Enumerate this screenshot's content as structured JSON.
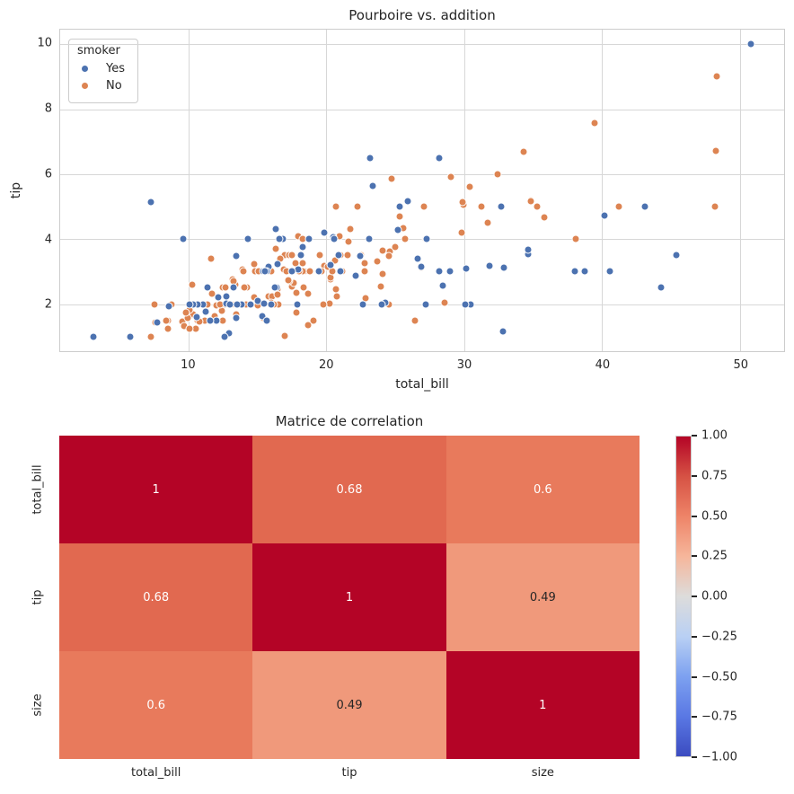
{
  "chart_data": [
    {
      "type": "scatter",
      "title": "Pourboire vs. addition",
      "xlabel": "total_bill",
      "ylabel": "tip",
      "xlim": [
        0.68,
        53.2
      ],
      "ylim": [
        0.55,
        10.45
      ],
      "x_ticks": [
        10,
        20,
        30,
        40,
        50
      ],
      "y_ticks": [
        2,
        4,
        6,
        8,
        10
      ],
      "grid": true,
      "legend": {
        "title": "smoker",
        "position": "upper left",
        "items": [
          {
            "label": "Yes",
            "color": "#4c72b0"
          },
          {
            "label": "No",
            "color": "#dd8452"
          }
        ]
      },
      "series": [
        {
          "name": "Yes",
          "color": "#4c72b0",
          "points": [
            [
              38.01,
              3.0
            ],
            [
              11.24,
              1.76
            ],
            [
              20.29,
              3.21
            ],
            [
              13.81,
              2.0
            ],
            [
              11.02,
              1.98
            ],
            [
              18.29,
              3.76
            ],
            [
              3.07,
              1.0
            ],
            [
              15.01,
              2.09
            ],
            [
              26.86,
              3.14
            ],
            [
              25.28,
              5.0
            ],
            [
              17.92,
              3.08
            ],
            [
              19.44,
              3.0
            ],
            [
              32.68,
              5.0
            ],
            [
              28.97,
              3.0
            ],
            [
              5.75,
              1.0
            ],
            [
              16.32,
              4.3
            ],
            [
              40.17,
              4.73
            ],
            [
              27.28,
              4.0
            ],
            [
              12.03,
              1.5
            ],
            [
              21.01,
              3.0
            ],
            [
              11.35,
              2.5
            ],
            [
              15.38,
              3.0
            ],
            [
              44.3,
              2.5
            ],
            [
              22.42,
              3.48
            ],
            [
              15.36,
              1.64
            ],
            [
              20.49,
              4.06
            ],
            [
              25.21,
              4.29
            ],
            [
              14.31,
              4.0
            ],
            [
              16.0,
              2.0
            ],
            [
              17.51,
              3.0
            ],
            [
              10.59,
              1.61
            ],
            [
              10.63,
              2.0
            ],
            [
              50.81,
              10.0
            ],
            [
              15.81,
              3.16
            ],
            [
              7.25,
              5.15
            ],
            [
              31.85,
              3.18
            ],
            [
              16.82,
              4.0
            ],
            [
              32.9,
              3.11
            ],
            [
              17.89,
              2.0
            ],
            [
              14.48,
              2.0
            ],
            [
              9.6,
              4.0
            ],
            [
              34.63,
              3.55
            ],
            [
              34.65,
              3.68
            ],
            [
              23.33,
              5.65
            ],
            [
              45.35,
              3.5
            ],
            [
              23.17,
              6.5
            ],
            [
              40.55,
              3.0
            ],
            [
              20.9,
              3.5
            ],
            [
              30.46,
              2.0
            ],
            [
              18.15,
              3.5
            ],
            [
              23.1,
              4.0
            ],
            [
              15.69,
              1.5
            ],
            [
              19.81,
              4.19
            ],
            [
              28.44,
              2.56
            ],
            [
              15.48,
              2.02
            ],
            [
              16.58,
              4.0
            ],
            [
              10.34,
              2.0
            ],
            [
              43.11,
              5.0
            ],
            [
              13.0,
              2.0
            ],
            [
              13.51,
              2.0
            ],
            [
              18.71,
              4.0
            ],
            [
              12.74,
              2.01
            ],
            [
              13.0,
              2.0
            ],
            [
              16.4,
              2.5
            ],
            [
              20.53,
              4.0
            ],
            [
              16.47,
              3.23
            ],
            [
              26.59,
              3.41
            ],
            [
              38.73,
              3.0
            ],
            [
              24.27,
              2.03
            ],
            [
              12.76,
              2.23
            ],
            [
              30.06,
              2.0
            ],
            [
              25.89,
              5.16
            ],
            [
              13.27,
              2.5
            ],
            [
              28.17,
              6.5
            ],
            [
              12.9,
              1.1
            ],
            [
              28.15,
              3.0
            ],
            [
              11.59,
              1.5
            ],
            [
              7.74,
              1.44
            ],
            [
              30.14,
              3.09
            ],
            [
              12.16,
              2.2
            ],
            [
              13.42,
              3.48
            ],
            [
              8.58,
              1.92
            ],
            [
              13.42,
              1.58
            ],
            [
              16.27,
              2.5
            ],
            [
              10.09,
              2.0
            ],
            [
              22.12,
              2.88
            ],
            [
              24.01,
              2.0
            ],
            [
              15.69,
              3.0
            ],
            [
              15.53,
              3.0
            ],
            [
              12.6,
              1.0
            ],
            [
              32.83,
              1.17
            ],
            [
              27.18,
              2.0
            ],
            [
              22.67,
              2.0
            ]
          ]
        },
        {
          "name": "No",
          "color": "#dd8452",
          "points": [
            [
              16.99,
              1.01
            ],
            [
              10.34,
              1.66
            ],
            [
              21.01,
              3.5
            ],
            [
              23.68,
              3.31
            ],
            [
              24.59,
              3.61
            ],
            [
              25.29,
              4.71
            ],
            [
              8.77,
              2.0
            ],
            [
              26.88,
              3.12
            ],
            [
              15.04,
              1.96
            ],
            [
              14.78,
              3.23
            ],
            [
              10.27,
              1.71
            ],
            [
              35.26,
              5.0
            ],
            [
              15.42,
              1.57
            ],
            [
              18.43,
              3.0
            ],
            [
              14.83,
              3.02
            ],
            [
              21.58,
              3.92
            ],
            [
              10.33,
              1.67
            ],
            [
              16.29,
              3.71
            ],
            [
              16.97,
              3.5
            ],
            [
              20.65,
              3.35
            ],
            [
              17.92,
              4.08
            ],
            [
              20.29,
              2.75
            ],
            [
              15.77,
              2.23
            ],
            [
              39.42,
              7.58
            ],
            [
              19.82,
              3.18
            ],
            [
              17.81,
              2.34
            ],
            [
              13.37,
              2.0
            ],
            [
              12.69,
              2.0
            ],
            [
              21.7,
              4.3
            ],
            [
              19.65,
              3.0
            ],
            [
              9.55,
              1.45
            ],
            [
              18.35,
              2.5
            ],
            [
              15.06,
              3.0
            ],
            [
              20.69,
              2.45
            ],
            [
              17.78,
              3.27
            ],
            [
              24.06,
              3.64
            ],
            [
              16.31,
              2.0
            ],
            [
              16.93,
              3.07
            ],
            [
              18.69,
              2.31
            ],
            [
              31.27,
              5.0
            ],
            [
              16.04,
              2.24
            ],
            [
              17.46,
              2.54
            ],
            [
              13.94,
              3.06
            ],
            [
              9.68,
              1.32
            ],
            [
              30.4,
              5.6
            ],
            [
              18.29,
              3.0
            ],
            [
              22.23,
              5.0
            ],
            [
              32.4,
              6.0
            ],
            [
              28.55,
              2.05
            ],
            [
              18.04,
              3.0
            ],
            [
              12.54,
              2.5
            ],
            [
              10.29,
              2.6
            ],
            [
              34.81,
              5.2
            ],
            [
              9.94,
              1.56
            ],
            [
              25.56,
              4.34
            ],
            [
              19.49,
              3.51
            ],
            [
              26.41,
              1.5
            ],
            [
              48.27,
              6.73
            ],
            [
              17.59,
              2.64
            ],
            [
              20.08,
              3.15
            ],
            [
              16.45,
              2.47
            ],
            [
              20.23,
              2.01
            ],
            [
              12.02,
              1.97
            ],
            [
              17.07,
              3.0
            ],
            [
              14.73,
              2.2
            ],
            [
              10.51,
              1.25
            ],
            [
              27.2,
              4.0
            ],
            [
              22.76,
              3.0
            ],
            [
              17.29,
              2.71
            ],
            [
              16.66,
              3.4
            ],
            [
              10.07,
              1.83
            ],
            [
              15.98,
              2.03
            ],
            [
              34.83,
              5.17
            ],
            [
              13.03,
              2.0
            ],
            [
              18.28,
              4.0
            ],
            [
              24.71,
              5.85
            ],
            [
              21.16,
              3.0
            ],
            [
              22.49,
              3.5
            ],
            [
              22.75,
              3.25
            ],
            [
              12.46,
              1.5
            ],
            [
              20.92,
              4.08
            ],
            [
              18.24,
              3.76
            ],
            [
              14.0,
              3.0
            ],
            [
              7.25,
              1.0
            ],
            [
              38.07,
              4.0
            ],
            [
              23.95,
              2.55
            ],
            [
              25.71,
              4.0
            ],
            [
              17.31,
              3.5
            ],
            [
              29.93,
              5.07
            ],
            [
              10.65,
              1.5
            ],
            [
              12.43,
              1.8
            ],
            [
              24.08,
              2.92
            ],
            [
              11.69,
              2.31
            ],
            [
              13.42,
              1.68
            ],
            [
              14.26,
              2.5
            ],
            [
              15.95,
              2.0
            ],
            [
              12.48,
              2.52
            ],
            [
              29.8,
              4.2
            ],
            [
              8.52,
              1.48
            ],
            [
              14.52,
              2.0
            ],
            [
              11.38,
              2.0
            ],
            [
              22.82,
              2.18
            ],
            [
              19.08,
              1.5
            ],
            [
              20.27,
              2.83
            ],
            [
              11.17,
              1.5
            ],
            [
              12.26,
              2.0
            ],
            [
              18.26,
              3.25
            ],
            [
              8.51,
              1.25
            ],
            [
              10.33,
              2.0
            ],
            [
              14.15,
              2.0
            ],
            [
              13.16,
              2.75
            ],
            [
              17.47,
              3.5
            ],
            [
              34.3,
              6.7
            ],
            [
              41.19,
              5.0
            ],
            [
              27.05,
              5.0
            ],
            [
              16.43,
              2.3
            ],
            [
              8.35,
              1.5
            ],
            [
              18.64,
              1.36
            ],
            [
              11.87,
              1.63
            ],
            [
              9.78,
              1.73
            ],
            [
              7.51,
              2.0
            ],
            [
              14.07,
              2.5
            ],
            [
              13.13,
              2.0
            ],
            [
              17.26,
              2.74
            ],
            [
              24.55,
              2.0
            ],
            [
              19.77,
              2.0
            ],
            [
              29.85,
              5.14
            ],
            [
              48.17,
              5.0
            ],
            [
              25.0,
              3.75
            ],
            [
              13.39,
              2.61
            ],
            [
              16.49,
              2.0
            ],
            [
              21.5,
              3.5
            ],
            [
              12.66,
              2.5
            ],
            [
              16.21,
              2.0
            ],
            [
              13.81,
              2.0
            ],
            [
              24.52,
              3.48
            ],
            [
              20.76,
              2.24
            ],
            [
              31.71,
              4.5
            ],
            [
              20.69,
              5.0
            ],
            [
              7.56,
              1.44
            ],
            [
              48.33,
              9.0
            ],
            [
              15.98,
              3.0
            ],
            [
              20.45,
              3.0
            ],
            [
              13.28,
              2.72
            ],
            [
              11.61,
              3.39
            ],
            [
              10.77,
              1.47
            ],
            [
              10.07,
              1.25
            ],
            [
              35.83,
              4.67
            ],
            [
              29.03,
              5.92
            ],
            [
              17.82,
              1.75
            ],
            [
              18.78,
              3.0
            ]
          ]
        }
      ]
    },
    {
      "type": "heatmap",
      "title": "Matrice de correlation",
      "labels": [
        "total_bill",
        "tip",
        "size"
      ],
      "matrix": [
        [
          1,
          0.68,
          0.6
        ],
        [
          0.68,
          1,
          0.49
        ],
        [
          0.6,
          0.49,
          1
        ]
      ],
      "cell_text": [
        [
          "1",
          "0.68",
          "0.6"
        ],
        [
          "0.68",
          "1",
          "0.49"
        ],
        [
          "0.6",
          "0.49",
          "1"
        ]
      ],
      "cell_colors": [
        [
          "#b40426",
          "#e16950",
          "#e87a5c"
        ],
        [
          "#e16950",
          "#b40426",
          "#f0997b"
        ],
        [
          "#e87a5c",
          "#f0997b",
          "#b40426"
        ]
      ],
      "cell_text_colors": [
        [
          "#ffffff",
          "#ffffff",
          "#ffffff"
        ],
        [
          "#ffffff",
          "#ffffff",
          "#262626"
        ],
        [
          "#ffffff",
          "#262626",
          "#ffffff"
        ]
      ],
      "colormap": "coolwarm",
      "colorbar": {
        "vmin": -1,
        "vmax": 1,
        "ticks": [
          "1.00",
          "0.75",
          "0.50",
          "0.25",
          "0.00",
          "−0.25",
          "−0.50",
          "−0.75",
          "−1.00"
        ],
        "gradient": [
          "#b40426",
          "#d65244",
          "#ee8468",
          "#f6b69b",
          "#dddcdb",
          "#b9d0f4",
          "#7da1f0",
          "#5a78e4",
          "#3b4cc0"
        ]
      }
    }
  ],
  "colors": {
    "text": "#262626",
    "grid": "#d7d7d7",
    "spine": "#cccccc",
    "background": "#ffffff"
  }
}
